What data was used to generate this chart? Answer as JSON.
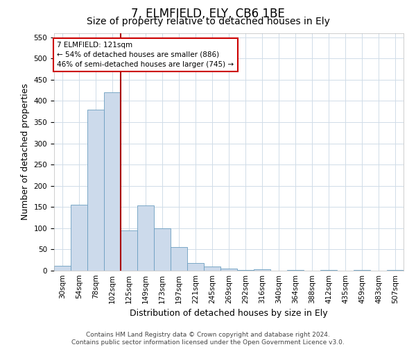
{
  "title": "7, ELMFIELD, ELY, CB6 1BE",
  "subtitle": "Size of property relative to detached houses in Ely",
  "xlabel": "Distribution of detached houses by size in Ely",
  "ylabel": "Number of detached properties",
  "footer_line1": "Contains HM Land Registry data © Crown copyright and database right 2024.",
  "footer_line2": "Contains public sector information licensed under the Open Government Licence v3.0.",
  "bin_labels": [
    "30sqm",
    "54sqm",
    "78sqm",
    "102sqm",
    "125sqm",
    "149sqm",
    "173sqm",
    "197sqm",
    "221sqm",
    "245sqm",
    "269sqm",
    "292sqm",
    "316sqm",
    "340sqm",
    "364sqm",
    "388sqm",
    "412sqm",
    "435sqm",
    "459sqm",
    "483sqm",
    "507sqm"
  ],
  "bar_values": [
    12,
    155,
    380,
    420,
    95,
    153,
    100,
    55,
    18,
    10,
    5,
    2,
    4,
    0,
    2,
    0,
    2,
    0,
    2,
    0,
    2
  ],
  "bar_color": "#ccdaeb",
  "bar_edge_color": "#6a9ec0",
  "grid_color": "#d0dce8",
  "vline_x_index": 4,
  "vline_color": "#aa0000",
  "annotation_line1": "7 ELMFIELD: 121sqm",
  "annotation_line2": "← 54% of detached houses are smaller (886)",
  "annotation_line3": "46% of semi-detached houses are larger (745) →",
  "annotation_box_color": "#ffffff",
  "annotation_box_edge_color": "#cc0000",
  "ylim": [
    0,
    560
  ],
  "yticks": [
    0,
    50,
    100,
    150,
    200,
    250,
    300,
    350,
    400,
    450,
    500,
    550
  ],
  "background_color": "#ffffff",
  "title_fontsize": 12,
  "subtitle_fontsize": 10,
  "axis_label_fontsize": 9,
  "tick_fontsize": 7.5,
  "footer_fontsize": 6.5
}
